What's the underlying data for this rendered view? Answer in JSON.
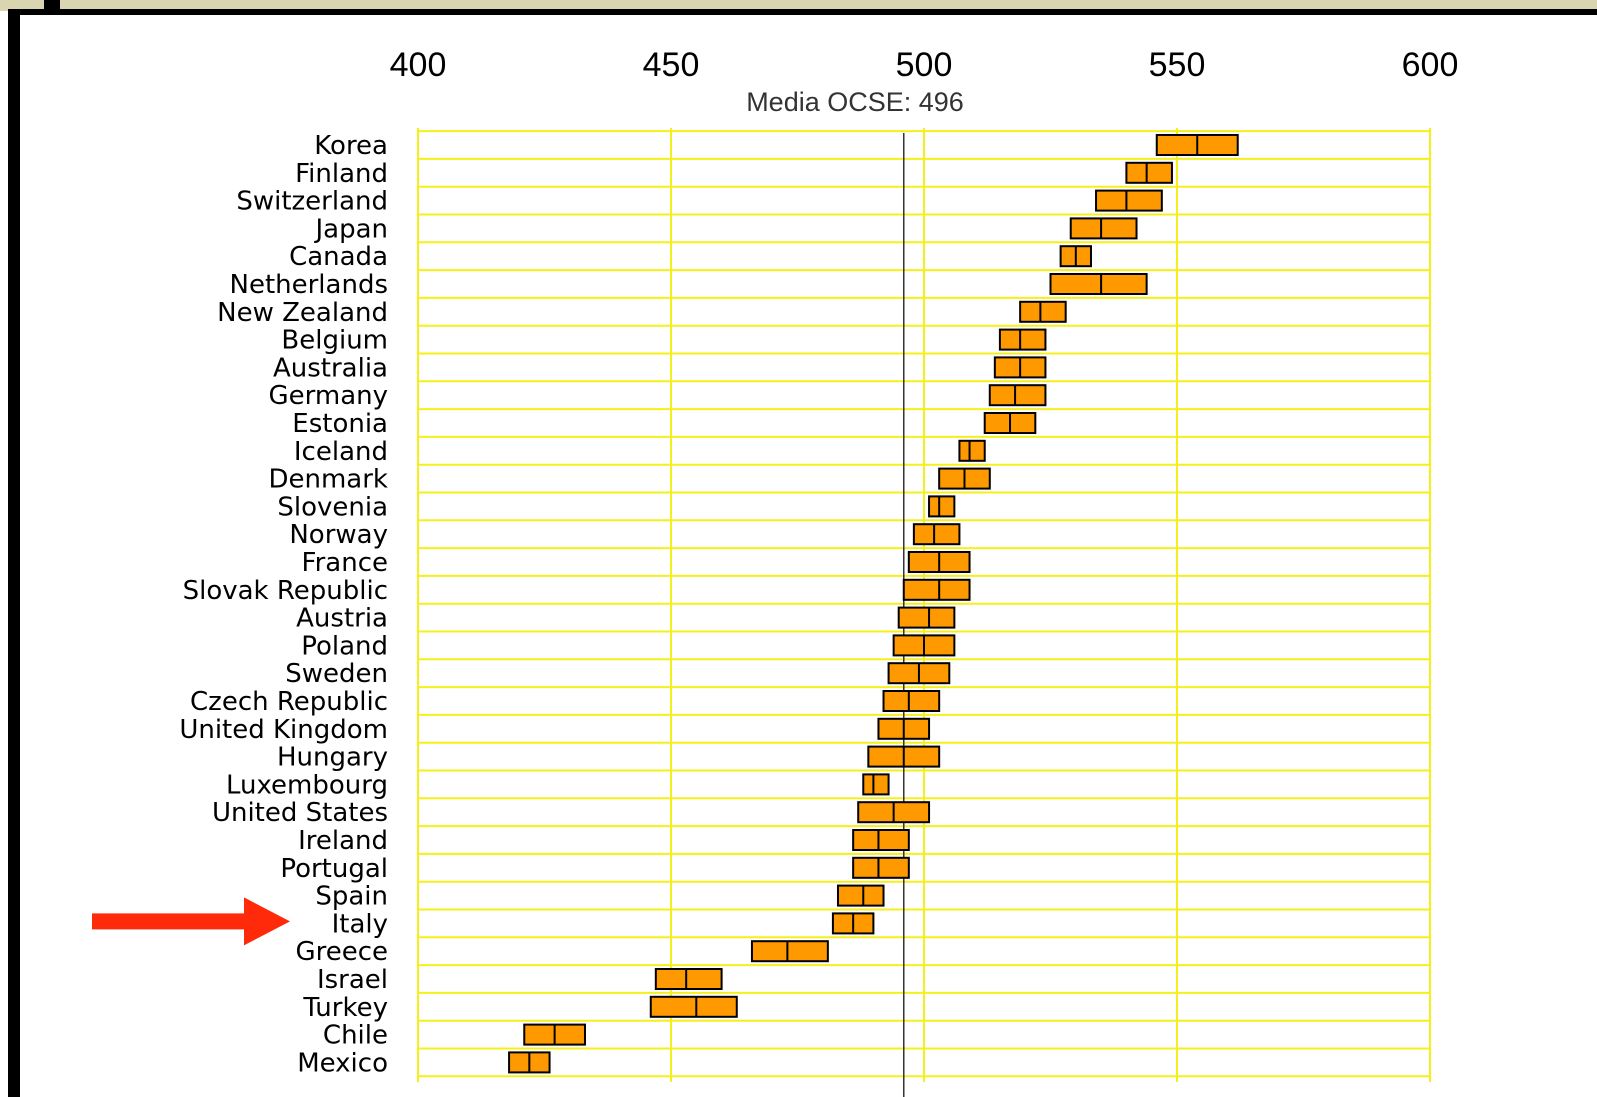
{
  "chart_data": {
    "type": "bar",
    "xlim": [
      400,
      600
    ],
    "x_ticks": [
      "400",
      "450",
      "500",
      "550",
      "600"
    ],
    "reference_line": {
      "value": 496,
      "label": "Media OCSE: 496"
    },
    "highlight_arrow_target": "Italy",
    "grid": true,
    "colors": {
      "grid": "#f5f01a",
      "bar": "#ff9900",
      "bar_edge": "#000000",
      "arrow": "#ff2a0a",
      "ref_line": "#333333"
    },
    "countries": [
      {
        "name": "Korea",
        "low": 546,
        "mean": 554,
        "high": 562
      },
      {
        "name": "Finland",
        "low": 540,
        "mean": 544,
        "high": 549
      },
      {
        "name": "Switzerland",
        "low": 534,
        "mean": 540,
        "high": 547
      },
      {
        "name": "Japan",
        "low": 529,
        "mean": 535,
        "high": 542
      },
      {
        "name": "Canada",
        "low": 527,
        "mean": 530,
        "high": 533
      },
      {
        "name": "Netherlands",
        "low": 525,
        "mean": 535,
        "high": 544
      },
      {
        "name": "New Zealand",
        "low": 519,
        "mean": 523,
        "high": 528
      },
      {
        "name": "Belgium",
        "low": 515,
        "mean": 519,
        "high": 524
      },
      {
        "name": "Australia",
        "low": 514,
        "mean": 519,
        "high": 524
      },
      {
        "name": "Germany",
        "low": 513,
        "mean": 518,
        "high": 524
      },
      {
        "name": "Estonia",
        "low": 512,
        "mean": 517,
        "high": 522
      },
      {
        "name": "Iceland",
        "low": 507,
        "mean": 509,
        "high": 512
      },
      {
        "name": "Denmark",
        "low": 503,
        "mean": 508,
        "high": 513
      },
      {
        "name": "Slovenia",
        "low": 501,
        "mean": 503,
        "high": 506
      },
      {
        "name": "Norway",
        "low": 498,
        "mean": 502,
        "high": 507
      },
      {
        "name": "France",
        "low": 497,
        "mean": 503,
        "high": 509
      },
      {
        "name": "Slovak Republic",
        "low": 496,
        "mean": 503,
        "high": 509
      },
      {
        "name": "Austria",
        "low": 495,
        "mean": 501,
        "high": 506
      },
      {
        "name": "Poland",
        "low": 494,
        "mean": 500,
        "high": 506
      },
      {
        "name": "Sweden",
        "low": 493,
        "mean": 499,
        "high": 505
      },
      {
        "name": "Czech Republic",
        "low": 492,
        "mean": 497,
        "high": 503
      },
      {
        "name": "United Kingdom",
        "low": 491,
        "mean": 496,
        "high": 501
      },
      {
        "name": "Hungary",
        "low": 489,
        "mean": 496,
        "high": 503
      },
      {
        "name": "Luxembourg",
        "low": 488,
        "mean": 490,
        "high": 493
      },
      {
        "name": "United States",
        "low": 487,
        "mean": 494,
        "high": 501
      },
      {
        "name": "Ireland",
        "low": 486,
        "mean": 491,
        "high": 497
      },
      {
        "name": "Portugal",
        "low": 486,
        "mean": 491,
        "high": 497
      },
      {
        "name": "Spain",
        "low": 483,
        "mean": 488,
        "high": 492
      },
      {
        "name": "Italy",
        "low": 482,
        "mean": 486,
        "high": 490
      },
      {
        "name": "Greece",
        "low": 466,
        "mean": 473,
        "high": 481
      },
      {
        "name": "Israel",
        "low": 447,
        "mean": 453,
        "high": 460
      },
      {
        "name": "Turkey",
        "low": 446,
        "mean": 455,
        "high": 463
      },
      {
        "name": "Chile",
        "low": 421,
        "mean": 427,
        "high": 433
      },
      {
        "name": "Mexico",
        "low": 418,
        "mean": 422,
        "high": 426
      }
    ]
  }
}
